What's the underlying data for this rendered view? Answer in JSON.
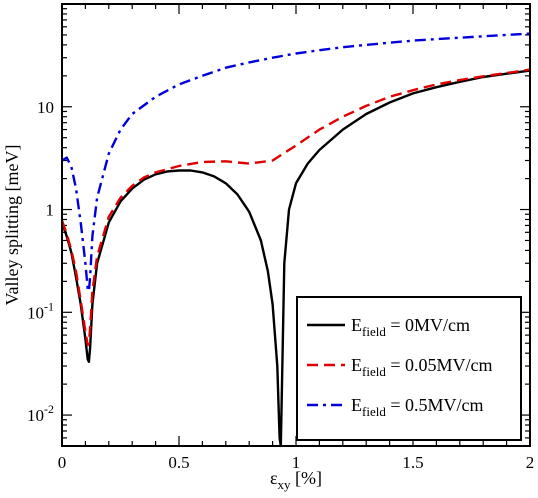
{
  "chart_data": {
    "type": "line",
    "title": "",
    "xlabel": "ε",
    "xlabel_sub": "xy",
    "xlabel_unit": " [%]",
    "ylabel": "Valley splitting [meV]",
    "xlim": [
      0,
      2
    ],
    "ylim": [
      0.005,
      100
    ],
    "yscale": "log",
    "grid": false,
    "legend_position": "bottom-right",
    "x_ticks": [
      {
        "value": 0,
        "label": "0"
      },
      {
        "value": 0.5,
        "label": "0.5"
      },
      {
        "value": 1,
        "label": "1"
      },
      {
        "value": 1.5,
        "label": "1.5"
      },
      {
        "value": 2,
        "label": "2"
      }
    ],
    "y_ticks": [
      {
        "value": 0.01,
        "base": "10",
        "exp": "-2"
      },
      {
        "value": 0.1,
        "base": "10",
        "exp": "-1"
      },
      {
        "value": 1,
        "base": "1",
        "exp": ""
      },
      {
        "value": 10,
        "base": "10",
        "exp": ""
      }
    ],
    "series": [
      {
        "name_main": "E",
        "name_sub": "field",
        "name_rest": " = 0MV/cm",
        "color": "#000000",
        "dash": "solid",
        "x": [
          0,
          0.02,
          0.04,
          0.06,
          0.08,
          0.1,
          0.11,
          0.115,
          0.12,
          0.13,
          0.15,
          0.2,
          0.25,
          0.3,
          0.35,
          0.4,
          0.45,
          0.5,
          0.55,
          0.6,
          0.65,
          0.7,
          0.75,
          0.8,
          0.85,
          0.88,
          0.9,
          0.92,
          0.93,
          0.935,
          0.94,
          0.95,
          0.97,
          1.0,
          1.05,
          1.1,
          1.2,
          1.3,
          1.4,
          1.5,
          1.6,
          1.7,
          1.8,
          1.9,
          2.0
        ],
        "y": [
          0.75,
          0.55,
          0.38,
          0.22,
          0.12,
          0.055,
          0.035,
          0.033,
          0.045,
          0.12,
          0.3,
          0.75,
          1.2,
          1.6,
          1.95,
          2.2,
          2.35,
          2.4,
          2.4,
          2.3,
          2.1,
          1.8,
          1.4,
          0.95,
          0.5,
          0.25,
          0.12,
          0.03,
          0.006,
          0.005,
          0.02,
          0.3,
          1.0,
          1.8,
          2.8,
          3.8,
          6.0,
          8.5,
          11.0,
          13.5,
          15.5,
          17.5,
          19.5,
          21.0,
          22.5
        ]
      },
      {
        "name_main": "E",
        "name_sub": "field",
        "name_rest": " = 0.05MV/cm",
        "color": "#e00000",
        "dash": "dashed",
        "x": [
          0,
          0.02,
          0.04,
          0.06,
          0.08,
          0.1,
          0.11,
          0.115,
          0.12,
          0.13,
          0.15,
          0.2,
          0.25,
          0.3,
          0.35,
          0.4,
          0.5,
          0.6,
          0.7,
          0.8,
          0.9,
          1.0,
          1.1,
          1.2,
          1.3,
          1.4,
          1.5,
          1.6,
          1.7,
          1.8,
          1.9,
          2.0
        ],
        "y": [
          0.78,
          0.58,
          0.4,
          0.25,
          0.13,
          0.065,
          0.048,
          0.05,
          0.07,
          0.16,
          0.35,
          0.85,
          1.3,
          1.7,
          2.05,
          2.3,
          2.65,
          2.9,
          2.95,
          2.8,
          3.0,
          4.2,
          6.0,
          8.0,
          10.2,
          12.5,
          14.5,
          16.5,
          18.2,
          19.8,
          21.3,
          23.0
        ]
      },
      {
        "name_main": "E",
        "name_sub": "field",
        "name_rest": " = 0.5MV/cm",
        "color": "#0000dd",
        "dash": "dashdot",
        "x": [
          0,
          0.02,
          0.04,
          0.06,
          0.08,
          0.1,
          0.11,
          0.115,
          0.12,
          0.13,
          0.15,
          0.2,
          0.25,
          0.3,
          0.4,
          0.5,
          0.6,
          0.7,
          0.8,
          0.9,
          1.0,
          1.1,
          1.2,
          1.3,
          1.4,
          1.5,
          1.6,
          1.7,
          1.8,
          1.9,
          2.0
        ],
        "y": [
          3.0,
          3.2,
          2.6,
          1.6,
          0.75,
          0.3,
          0.17,
          0.16,
          0.22,
          0.55,
          1.3,
          3.5,
          6.0,
          8.5,
          12.5,
          16.5,
          20.0,
          24.0,
          27.0,
          30.0,
          33.0,
          35.5,
          38.0,
          40.0,
          42.0,
          44.0,
          45.5,
          47.0,
          48.5,
          50.0,
          51.5
        ]
      }
    ]
  }
}
